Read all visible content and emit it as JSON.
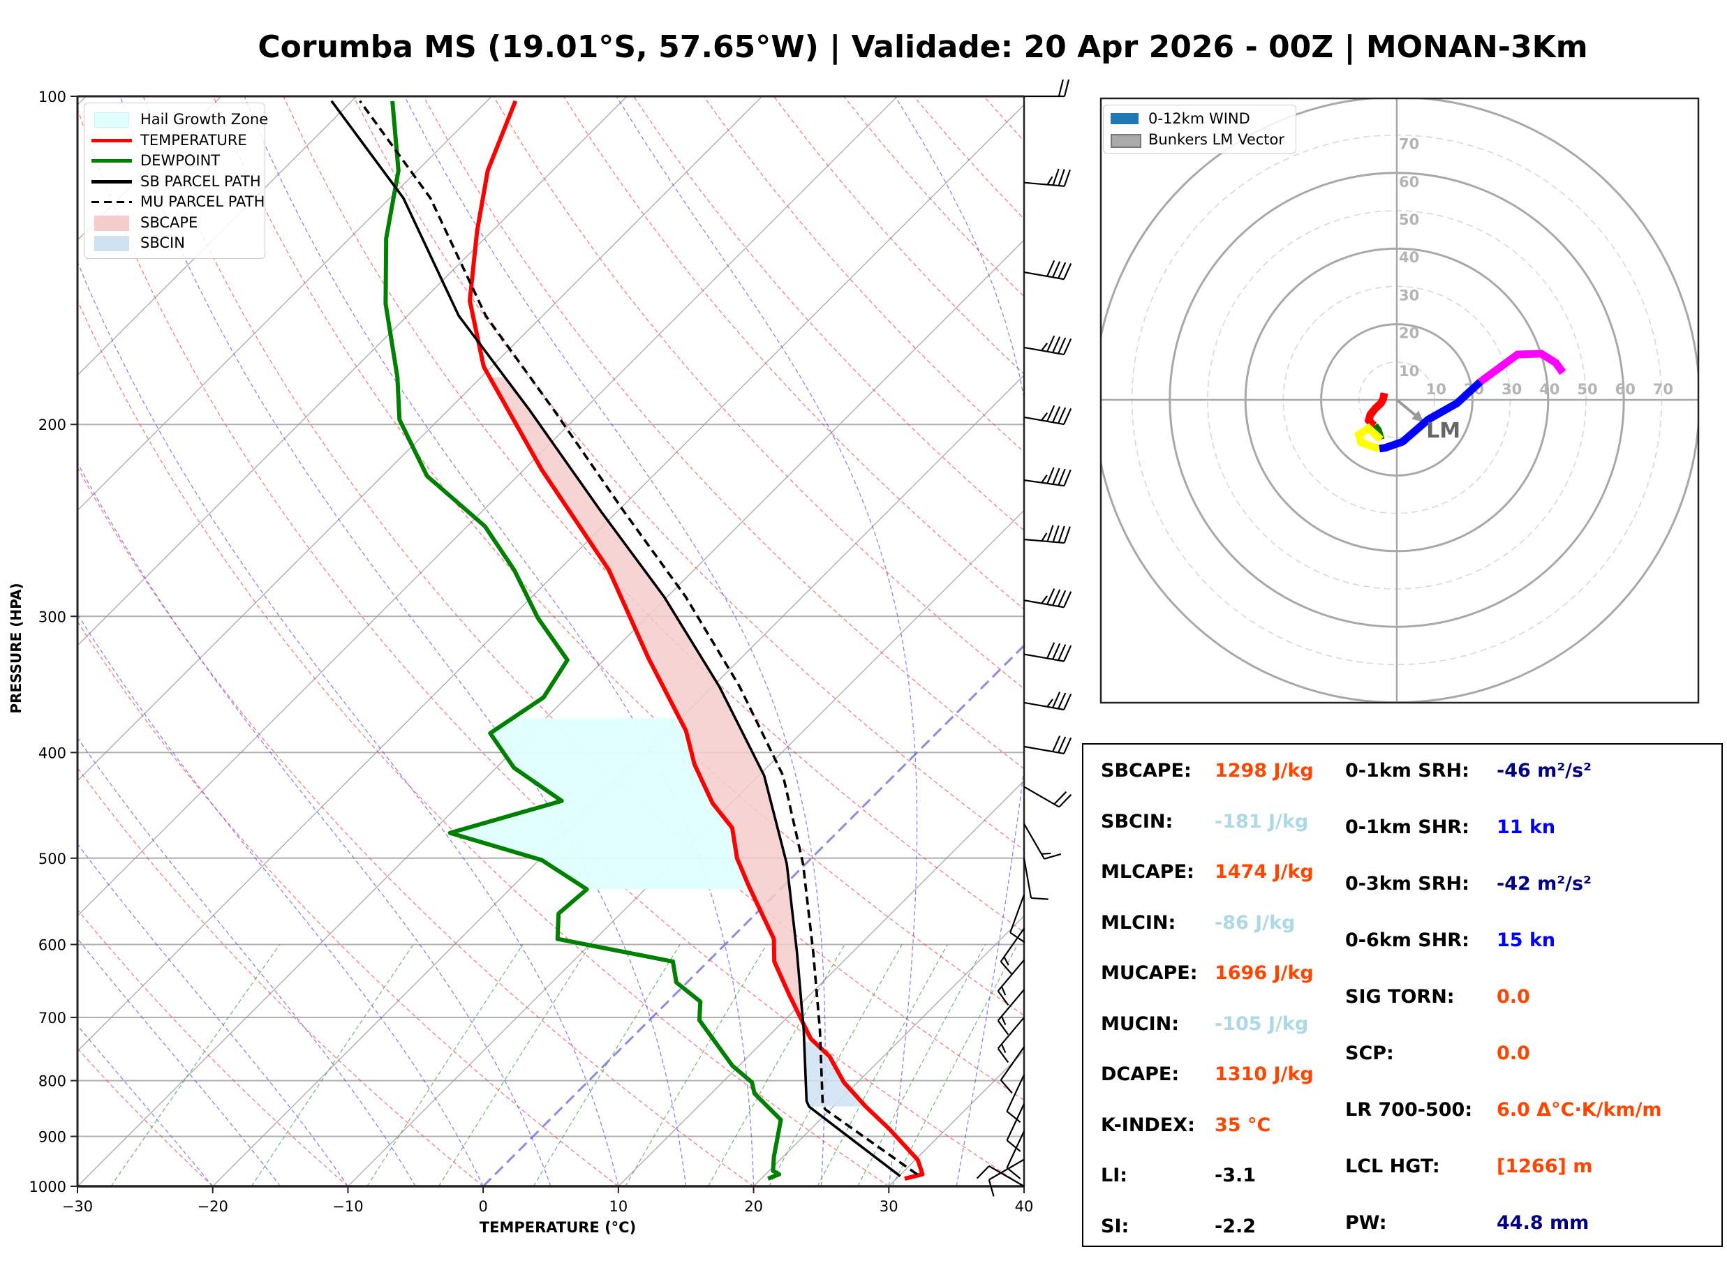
{
  "title": "Corumba MS (19.01°S, 57.65°W) | Validade: 20 Apr 2026 - 00Z | MONAN-3Km",
  "chart_data": [
    {
      "type": "line",
      "name": "skew-t",
      "xlabel": "TEMPERATURE (°C)",
      "ylabel": "PRESSURE (HPA)",
      "xlim": [
        -30,
        40
      ],
      "ylim": [
        1000,
        100
      ],
      "xticks": [
        -30,
        -20,
        -10,
        0,
        10,
        20,
        30,
        40
      ],
      "xtick_labels": [
        "−30",
        "−20",
        "−10",
        "0",
        "10",
        "20",
        "30",
        "40"
      ],
      "yticks": [
        1000,
        900,
        800,
        700,
        600,
        500,
        400,
        300,
        200,
        100
      ],
      "ytick_labels": [
        "1000",
        "900",
        "800",
        "700",
        "600",
        "500",
        "400",
        "300",
        "200",
        "100"
      ],
      "yscale": "log",
      "skew": 45,
      "legend": {
        "position": "top-left",
        "entries": [
          {
            "label": "Hail Growth Zone",
            "color": "#e0ffff",
            "kind": "patch"
          },
          {
            "label": "TEMPERATURE",
            "color": "#ff0000",
            "kind": "line"
          },
          {
            "label": "DEWPOINT",
            "color": "#008000",
            "kind": "line"
          },
          {
            "label": "SB PARCEL PATH",
            "color": "#000000",
            "kind": "line"
          },
          {
            "label": "MU PARCEL PATH",
            "color": "#000000",
            "kind": "dashed"
          },
          {
            "label": "SBCAPE",
            "color": "#f4cccc",
            "kind": "patch"
          },
          {
            "label": "SBCIN",
            "color": "#cfe2f3",
            "kind": "patch"
          }
        ]
      },
      "series": [
        {
          "name": "TEMPERATURE",
          "color": "#ff0000",
          "pressure": [
            984,
            975,
            946,
            886,
            845,
            803,
            760,
            732,
            669,
            622,
            593,
            530,
            500,
            469,
            445,
            410,
            382,
            328,
            272,
            220,
            177,
            154,
            133,
            117,
            101
          ],
          "temperature": [
            30.6,
            31.6,
            30.2,
            25.8,
            22.4,
            19.0,
            16.0,
            13.3,
            8.6,
            4.9,
            3.2,
            -2.6,
            -5.5,
            -8.1,
            -11.4,
            -15.6,
            -18.7,
            -26.8,
            -36.3,
            -48.7,
            -60.6,
            -66.5,
            -71.1,
            -74.8,
            -77.9
          ]
        },
        {
          "name": "DEWPOINT",
          "color": "#008000",
          "pressure": [
            984,
            975,
            968,
            939,
            869,
            822,
            803,
            775,
            704,
            677,
            650,
            622,
            593,
            562,
            534,
            502,
            474,
            443,
            413,
            384,
            356,
            329,
            301,
            272,
            248,
            223,
            198,
            181,
            155,
            135,
            117,
            101
          ],
          "temperature": [
            20.5,
            21.0,
            20.3,
            19.3,
            17.1,
            13.2,
            12.2,
            9.5,
            3.7,
            2.4,
            -0.8,
            -2.6,
            -12.8,
            -14.6,
            -14.3,
            -19.8,
            -28.6,
            -22.7,
            -28.7,
            -33.0,
            -31.7,
            -32.7,
            -38.0,
            -43.3,
            -48.7,
            -56.7,
            -62.9,
            -66.2,
            -72.5,
            -77.3,
            -81.4,
            -87.0
          ]
        },
        {
          "name": "SB PARCEL PATH",
          "color": "#000000",
          "pressure": [
            979,
            845,
            835,
            718,
            610,
            506,
            420,
            348,
            288,
            240,
            194,
            159,
            124,
            101
          ],
          "temperature": [
            30.1,
            18.2,
            17.6,
            12.1,
            5.9,
            -1.4,
            -9.6,
            -19.5,
            -30.2,
            -41.3,
            -54.0,
            -66.2,
            -79.0,
            -91.5
          ]
        },
        {
          "name": "MU PARCEL PATH",
          "color": "#000000",
          "dashed": true,
          "pressure": [
            975,
            850,
            840,
            718,
            610,
            506,
            420,
            348,
            288,
            240,
            194,
            159,
            124,
            101
          ],
          "temperature": [
            31.2,
            19.6,
            19.0,
            13.3,
            7.1,
            -0.2,
            -8.2,
            -18.0,
            -28.6,
            -39.6,
            -52.2,
            -64.2,
            -77.0,
            -89.4
          ]
        }
      ],
      "fills": [
        {
          "name": "SBCAPE",
          "color": "#f4cccc",
          "between": [
            "SB PARCEL PATH",
            "TEMPERATURE"
          ],
          "pressure_range": [
            730,
            180
          ]
        },
        {
          "name": "SBCIN",
          "color": "#cfe2f3",
          "between": [
            "SB PARCEL PATH",
            "TEMPERATURE"
          ],
          "pressure_range": [
            845,
            735
          ]
        },
        {
          "name": "Hail Growth Zone",
          "color": "#e0ffff",
          "between": [
            "DEWPOINT",
            "TEMPERATURE"
          ],
          "pressure_range": [
            534,
            370
          ]
        }
      ],
      "wind_barbs": [
        {
          "pressure": 100,
          "speed_kn": 20,
          "dir_deg": 270
        },
        {
          "pressure": 120,
          "speed_kn": 35,
          "dir_deg": 275
        },
        {
          "pressure": 145,
          "speed_kn": 40,
          "dir_deg": 280
        },
        {
          "pressure": 170,
          "speed_kn": 45,
          "dir_deg": 280
        },
        {
          "pressure": 197,
          "speed_kn": 45,
          "dir_deg": 280
        },
        {
          "pressure": 225,
          "speed_kn": 45,
          "dir_deg": 278
        },
        {
          "pressure": 255,
          "speed_kn": 45,
          "dir_deg": 275
        },
        {
          "pressure": 290,
          "speed_kn": 45,
          "dir_deg": 280
        },
        {
          "pressure": 325,
          "speed_kn": 40,
          "dir_deg": 280
        },
        {
          "pressure": 360,
          "speed_kn": 35,
          "dir_deg": 280
        },
        {
          "pressure": 395,
          "speed_kn": 30,
          "dir_deg": 280
        },
        {
          "pressure": 430,
          "speed_kn": 20,
          "dir_deg": 300
        },
        {
          "pressure": 465,
          "speed_kn": 15,
          "dir_deg": 330
        },
        {
          "pressure": 500,
          "speed_kn": 10,
          "dir_deg": 350
        },
        {
          "pressure": 540,
          "speed_kn": 10,
          "dir_deg": 20
        },
        {
          "pressure": 580,
          "speed_kn": 15,
          "dir_deg": 35
        },
        {
          "pressure": 620,
          "speed_kn": 15,
          "dir_deg": 40
        },
        {
          "pressure": 660,
          "speed_kn": 15,
          "dir_deg": 40
        },
        {
          "pressure": 700,
          "speed_kn": 15,
          "dir_deg": 40
        },
        {
          "pressure": 745,
          "speed_kn": 10,
          "dir_deg": 35
        },
        {
          "pressure": 790,
          "speed_kn": 10,
          "dir_deg": 25
        },
        {
          "pressure": 840,
          "speed_kn": 10,
          "dir_deg": 25
        },
        {
          "pressure": 890,
          "speed_kn": 10,
          "dir_deg": 25
        },
        {
          "pressure": 945,
          "speed_kn": 10,
          "dir_deg": 60
        },
        {
          "pressure": 1000,
          "speed_kn": 10,
          "dir_deg": 120
        }
      ],
      "grid": true
    },
    {
      "type": "line",
      "name": "hodograph",
      "xlim": [
        -80,
        80
      ],
      "ylim": [
        -80,
        80
      ],
      "ring_values": [
        10,
        20,
        30,
        40,
        50,
        60,
        70,
        80
      ],
      "ring_labels_x": [
        "10",
        "20",
        "30",
        "40",
        "50",
        "60",
        "70"
      ],
      "ring_labels_y": [
        "10",
        "20",
        "30",
        "40",
        "50",
        "60",
        "70"
      ],
      "legend": {
        "position": "top-left",
        "entries": [
          {
            "label": "0-12km WIND",
            "color": "#1f77b4"
          },
          {
            "label": "Bunkers LM Vector",
            "color": "#aaaaaa"
          }
        ]
      },
      "segments": [
        {
          "name": "0-1km",
          "color": "#ff0000",
          "u": [
            -3.3,
            -3.6,
            -4.2,
            -5.6,
            -7.0,
            -7.4,
            -6.6,
            -5.9
          ],
          "v": [
            1.8,
            0.2,
            -0.9,
            -2.2,
            -3.9,
            -5.4,
            -6.3,
            -6.8
          ]
        },
        {
          "name": "1-3km",
          "color": "#007000",
          "u": [
            -5.9,
            -5.0,
            -4.5,
            -4.2
          ],
          "v": [
            -6.8,
            -8.0,
            -9.5,
            -10.5
          ]
        },
        {
          "name": "3-6km",
          "color": "#ffff00",
          "u": [
            -4.2,
            -7.5,
            -10.0,
            -9.5,
            -7.0,
            -4.6
          ],
          "v": [
            -10.5,
            -7.5,
            -9.2,
            -11.2,
            -12.2,
            -12.9
          ]
        },
        {
          "name": "6-9km",
          "color": "#0000ff",
          "u": [
            -4.6,
            -3.1,
            1.5,
            8.3,
            15.9,
            22.1
          ],
          "v": [
            -12.9,
            -12.7,
            -11.1,
            -5.2,
            -0.9,
            4.8
          ]
        },
        {
          "name": "9-12km",
          "color": "#ff00ff",
          "u": [
            22.1,
            31.9,
            38.2,
            42.0,
            43.9
          ],
          "v": [
            4.8,
            12.0,
            12.2,
            9.8,
            7.2
          ]
        }
      ],
      "bunkers_lm": {
        "u": 6.3,
        "v": -5.2,
        "label": "LM"
      }
    }
  ],
  "stats": {
    "left": [
      {
        "label": "SBCAPE:",
        "value": "1298 J/kg",
        "color": "#ff4500"
      },
      {
        "label": "SBCIN:",
        "value": "-181 J/kg",
        "color": "#add8e6"
      },
      {
        "label": "MLCAPE:",
        "value": "1474 J/kg",
        "color": "#ff4500"
      },
      {
        "label": "MLCIN:",
        "value": "-86 J/kg",
        "color": "#add8e6"
      },
      {
        "label": "MUCAPE:",
        "value": "1696 J/kg",
        "color": "#ff4500"
      },
      {
        "label": "MUCIN:",
        "value": "-105 J/kg",
        "color": "#add8e6"
      },
      {
        "label": "DCAPE:",
        "value": "1310 J/kg",
        "color": "#ff4500"
      },
      {
        "label": "K-INDEX:",
        "value": "35 °C",
        "color": "#ff4500"
      },
      {
        "label": "LI:",
        "value": "-3.1",
        "color": "#000000"
      },
      {
        "label": "SI:",
        "value": "-2.2",
        "color": "#000000"
      }
    ],
    "right": [
      {
        "label": "0-1km SRH:",
        "value": "-46 m²/s²",
        "color": "#000080"
      },
      {
        "label": "0-1km SHR:",
        "value": "11 kn",
        "color": "#0000ff"
      },
      {
        "label": "0-3km SRH:",
        "value": "-42 m²/s²",
        "color": "#000080"
      },
      {
        "label": "0-6km SHR:",
        "value": "15 kn",
        "color": "#0000ff"
      },
      {
        "label": "SIG TORN:",
        "value": "0.0",
        "color": "#ff4500"
      },
      {
        "label": "SCP:",
        "value": "0.0",
        "color": "#ff4500"
      },
      {
        "label": "LR 700-500:",
        "value": "6.0 Δ°C·K/km/m",
        "color": "#ff4500"
      },
      {
        "label": "LCL HGT:",
        "value": "[1266] m",
        "color": "#ff4500"
      },
      {
        "label": "PW:",
        "value": "44.8 mm",
        "color": "#000080"
      }
    ]
  }
}
